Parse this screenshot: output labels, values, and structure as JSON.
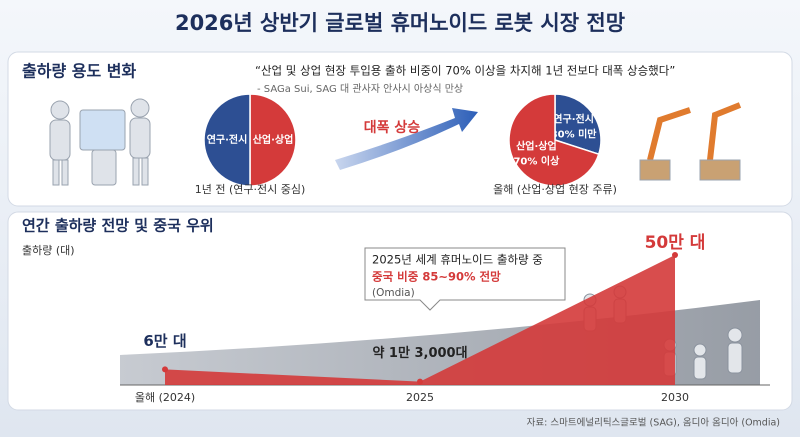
{
  "header": {
    "title": "2026년 상반기 글로벌 휴머노이드 로봇 시장 전망"
  },
  "usage": {
    "title": "출하량 용도 변화",
    "quote": "“산업 및 상업 현장 투입용 출하 비중이 70% 이상을 차지해 1년 전보다 대폭 상승했다”",
    "quote_source": "- SAGa Sui, SAG 대 관사자 안사시 아상식 만상",
    "arrow_label": "대폭 상승",
    "pies": [
      {
        "caption": "1년 전 (연구·전시 중심)",
        "slices": [
          {
            "label": "산업·상업",
            "value": 50,
            "color": "#d43a3a"
          },
          {
            "label": "연구·전시",
            "value": 50,
            "color": "#2d4f93"
          }
        ]
      },
      {
        "caption": "올해 (산업·상업 현장 주류)",
        "slices": [
          {
            "label": "연구·전시",
            "value": 30,
            "value_label": "30% 미만",
            "color": "#2d4f93"
          },
          {
            "label": "산업·상업",
            "value": 70,
            "value_label": "70% 이상",
            "color": "#d43a3a"
          }
        ]
      }
    ]
  },
  "outlook": {
    "title": "연간 출하량 전망 및 중국 우위",
    "unit_label": "출하량 (대)",
    "callout": {
      "line1": "2025년 세계 휴머노이드 출하량 중",
      "line2": "중국 비중 85~90% 전망",
      "line3": "(Omdia)"
    },
    "chart_data": {
      "type": "area",
      "categories": [
        "올해 (2024)",
        "2025",
        "2030"
      ],
      "values": [
        60000,
        13000,
        500000
      ],
      "value_labels": [
        "6만 대",
        "약 1만 3,000대",
        "50만 대"
      ],
      "color": "#d43a3a"
    }
  },
  "footer": {
    "source": "자료: 스마트에널리틱스글로벌 (SAG), 옴디아 옴디아 (Omdia)"
  }
}
